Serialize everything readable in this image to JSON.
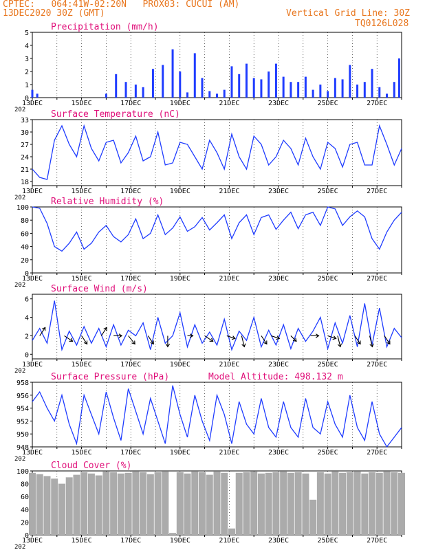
{
  "header": {
    "line1": "CPTEC:   064:41W-02:20N   PROX03: CUCUI (AM)",
    "line2": "13DEC2020 30Z (GMT)",
    "grid_note": "Vertical Grid Line: 30Z",
    "code": "TQ0126L028"
  },
  "colors": {
    "header": "#e8761e",
    "title": "#e0107a",
    "line": "#1f3cff",
    "bar": "#1f3cff",
    "cloud": "#ababab",
    "arrow": "#000000"
  },
  "x_axis": {
    "labels": [
      "13DEC",
      "15DEC",
      "17DEC",
      "19DEC",
      "21DEC",
      "23DEC",
      "25DEC",
      "27DEC"
    ],
    "year_fragment": "202"
  },
  "chart_data": [
    {
      "type": "bar",
      "title": "Precipitation (mm/h)",
      "ylim": [
        0,
        5
      ],
      "yticks": [
        "0",
        "1",
        "2",
        "3",
        "4",
        "5"
      ],
      "x": [
        13.0,
        13.2,
        16.0,
        16.4,
        16.8,
        17.2,
        17.5,
        17.9,
        18.3,
        18.7,
        19.0,
        19.3,
        19.6,
        19.9,
        20.2,
        20.5,
        20.8,
        21.1,
        21.4,
        21.7,
        22.0,
        22.3,
        22.6,
        22.9,
        23.2,
        23.5,
        23.8,
        24.1,
        24.4,
        24.7,
        25.0,
        25.3,
        25.6,
        25.9,
        26.2,
        26.5,
        26.8,
        27.1,
        27.4,
        27.7,
        27.9
      ],
      "values": [
        0.6,
        0.3,
        0.3,
        1.8,
        1.2,
        1.0,
        0.8,
        2.2,
        2.5,
        3.7,
        2.0,
        0.4,
        3.4,
        1.5,
        0.5,
        0.3,
        0.6,
        2.4,
        1.8,
        2.6,
        1.5,
        1.4,
        2.0,
        2.6,
        1.6,
        1.2,
        1.2,
        1.6,
        0.6,
        1.0,
        0.5,
        1.5,
        1.4,
        2.5,
        1.0,
        1.2,
        2.2,
        0.8,
        0.3,
        1.2,
        3.0
      ]
    },
    {
      "type": "line",
      "title": "Surface Temperature (nC)",
      "ylim": [
        17,
        33
      ],
      "yticks": [
        "18",
        "21",
        "24",
        "27",
        "30",
        "33"
      ],
      "x": [
        13.0,
        13.3,
        13.6,
        13.9,
        14.2,
        14.5,
        14.8,
        15.1,
        15.4,
        15.7,
        16.0,
        16.3,
        16.6,
        16.9,
        17.2,
        17.5,
        17.8,
        18.1,
        18.4,
        18.7,
        19.0,
        19.3,
        19.6,
        19.9,
        20.2,
        20.5,
        20.8,
        21.1,
        21.4,
        21.7,
        22.0,
        22.3,
        22.6,
        22.9,
        23.2,
        23.5,
        23.8,
        24.1,
        24.4,
        24.7,
        25.0,
        25.3,
        25.6,
        25.9,
        26.2,
        26.5,
        26.8,
        27.1,
        27.4,
        27.7,
        28.0
      ],
      "values": [
        21.0,
        19.0,
        18.5,
        28.0,
        31.5,
        27.0,
        24.0,
        31.5,
        26.0,
        23.0,
        27.5,
        28.0,
        22.5,
        25.0,
        29.0,
        23.0,
        24.0,
        30.0,
        22.0,
        22.5,
        27.5,
        27.0,
        24.0,
        21.0,
        28.0,
        25.0,
        21.0,
        29.5,
        24.0,
        21.0,
        29.0,
        27.0,
        22.0,
        24.0,
        28.0,
        26.0,
        22.0,
        28.5,
        24.0,
        21.0,
        27.5,
        26.0,
        21.5,
        27.0,
        27.5,
        22.0,
        22.0,
        31.5,
        27.0,
        22.0,
        26.0
      ]
    },
    {
      "type": "line",
      "title": "Relative Humidity (%)",
      "ylim": [
        0,
        100
      ],
      "yticks": [
        "0",
        "20",
        "40",
        "60",
        "80",
        "100"
      ],
      "x": [
        13.0,
        13.3,
        13.6,
        13.9,
        14.2,
        14.5,
        14.8,
        15.1,
        15.4,
        15.7,
        16.0,
        16.3,
        16.6,
        16.9,
        17.2,
        17.5,
        17.8,
        18.1,
        18.4,
        18.7,
        19.0,
        19.3,
        19.6,
        19.9,
        20.2,
        20.5,
        20.8,
        21.1,
        21.4,
        21.7,
        22.0,
        22.3,
        22.6,
        22.9,
        23.2,
        23.5,
        23.8,
        24.1,
        24.4,
        24.7,
        25.0,
        25.3,
        25.6,
        25.9,
        26.2,
        26.5,
        26.8,
        27.1,
        27.4,
        27.7,
        28.0
      ],
      "values": [
        100,
        98,
        75,
        40,
        33,
        45,
        62,
        36,
        45,
        62,
        72,
        55,
        47,
        58,
        82,
        52,
        60,
        88,
        58,
        68,
        85,
        63,
        70,
        84,
        65,
        76,
        88,
        52,
        76,
        88,
        58,
        84,
        88,
        66,
        80,
        92,
        67,
        88,
        92,
        72,
        100,
        97,
        72,
        85,
        94,
        85,
        52,
        36,
        62,
        80,
        92
      ]
    },
    {
      "type": "line",
      "title": "Surface Wind (m/s)",
      "ylim": [
        -0.5,
        6.5
      ],
      "yticks": [
        "0",
        "2",
        "4",
        "6"
      ],
      "x": [
        13.0,
        13.3,
        13.6,
        13.9,
        14.2,
        14.5,
        14.8,
        15.1,
        15.4,
        15.7,
        16.0,
        16.3,
        16.6,
        16.9,
        17.2,
        17.5,
        17.8,
        18.1,
        18.4,
        18.7,
        19.0,
        19.3,
        19.6,
        19.9,
        20.2,
        20.5,
        20.8,
        21.1,
        21.4,
        21.7,
        22.0,
        22.3,
        22.6,
        22.9,
        23.2,
        23.5,
        23.8,
        24.1,
        24.4,
        24.7,
        25.0,
        25.3,
        25.6,
        25.9,
        26.2,
        26.5,
        26.8,
        27.1,
        27.4,
        27.7,
        28.0
      ],
      "values": [
        1.5,
        2.8,
        1.2,
        5.8,
        0.5,
        2.5,
        1.0,
        3.0,
        1.2,
        2.8,
        0.8,
        3.2,
        1.0,
        2.6,
        2.0,
        3.4,
        0.5,
        4.0,
        1.2,
        2.0,
        4.5,
        0.8,
        3.2,
        1.2,
        2.4,
        1.0,
        3.8,
        0.5,
        2.5,
        1.5,
        4.0,
        0.8,
        2.6,
        1.0,
        3.2,
        0.6,
        2.8,
        1.4,
        2.5,
        4.0,
        0.6,
        3.4,
        1.2,
        4.2,
        0.8,
        5.5,
        1.0,
        5.0,
        0.8,
        2.8,
        1.8
      ],
      "vectors": [
        {
          "x": 13.3,
          "u": 1.0,
          "v": 1.5
        },
        {
          "x": 14.3,
          "u": 1.5,
          "v": -1.0
        },
        {
          "x": 15.0,
          "u": 1.0,
          "v": -1.5
        },
        {
          "x": 15.8,
          "u": 1.0,
          "v": 1.5
        },
        {
          "x": 16.3,
          "u": 1.5,
          "v": 0.0
        },
        {
          "x": 16.9,
          "u": 1.2,
          "v": -1.5
        },
        {
          "x": 17.7,
          "u": 1.0,
          "v": -1.5
        },
        {
          "x": 18.5,
          "u": 0.0,
          "v": -2.0
        },
        {
          "x": 19.3,
          "u": 1.0,
          "v": 0.0
        },
        {
          "x": 20.0,
          "u": 1.5,
          "v": -1.0
        },
        {
          "x": 20.9,
          "u": 1.5,
          "v": -0.5
        },
        {
          "x": 21.5,
          "u": 0.5,
          "v": -2.0
        },
        {
          "x": 22.3,
          "u": 1.0,
          "v": -1.5
        },
        {
          "x": 22.7,
          "u": 1.5,
          "v": -0.5
        },
        {
          "x": 23.5,
          "u": 1.0,
          "v": -1.0
        },
        {
          "x": 24.3,
          "u": 1.5,
          "v": 0.0
        },
        {
          "x": 25.0,
          "u": 1.5,
          "v": -0.5
        },
        {
          "x": 25.4,
          "u": 0.5,
          "v": -2.0
        },
        {
          "x": 26.1,
          "u": 1.0,
          "v": -1.5
        },
        {
          "x": 26.7,
          "u": 0.5,
          "v": -2.0
        },
        {
          "x": 27.3,
          "u": 1.0,
          "v": -1.5
        }
      ]
    },
    {
      "type": "line",
      "title": "Surface Pressure (hPa)",
      "subtitle": "Model Altitude: 498.132  m",
      "ylim": [
        948,
        958
      ],
      "yticks": [
        "948",
        "950",
        "952",
        "954",
        "956",
        "958"
      ],
      "x": [
        13.0,
        13.3,
        13.6,
        13.9,
        14.2,
        14.5,
        14.8,
        15.1,
        15.4,
        15.7,
        16.0,
        16.3,
        16.6,
        16.9,
        17.2,
        17.5,
        17.8,
        18.1,
        18.4,
        18.7,
        19.0,
        19.3,
        19.6,
        19.9,
        20.2,
        20.5,
        20.8,
        21.1,
        21.4,
        21.7,
        22.0,
        22.3,
        22.6,
        22.9,
        23.2,
        23.5,
        23.8,
        24.1,
        24.4,
        24.7,
        25.0,
        25.3,
        25.6,
        25.9,
        26.2,
        26.5,
        26.8,
        27.1,
        27.4,
        27.7,
        28.0
      ],
      "values": [
        955.0,
        956.5,
        954.0,
        952.0,
        956.0,
        951.5,
        948.5,
        956.0,
        953.0,
        950.0,
        956.5,
        952.5,
        949.0,
        957.0,
        953.5,
        950.0,
        955.5,
        952.0,
        948.5,
        957.5,
        953.0,
        949.5,
        956.0,
        952.0,
        949.0,
        956.0,
        953.0,
        948.5,
        955.0,
        951.5,
        950.0,
        955.5,
        951.0,
        949.5,
        955.0,
        951.0,
        949.5,
        955.5,
        951.0,
        950.0,
        955.0,
        951.5,
        949.5,
        956.0,
        951.0,
        949.0,
        955.0,
        950.0,
        948.0,
        949.5,
        951.0
      ]
    },
    {
      "type": "bar",
      "title": "Cloud Cover (%)",
      "ylim": [
        0,
        100
      ],
      "yticks": [
        "0",
        "20",
        "40",
        "60",
        "80",
        "100"
      ],
      "x": [
        13.0,
        13.3,
        13.6,
        13.9,
        14.2,
        14.5,
        14.8,
        15.1,
        15.4,
        15.7,
        16.0,
        16.3,
        16.6,
        16.9,
        17.2,
        17.5,
        17.8,
        18.1,
        18.4,
        18.7,
        19.0,
        19.3,
        19.6,
        19.9,
        20.2,
        20.5,
        20.8,
        21.1,
        21.4,
        21.7,
        22.0,
        22.3,
        22.6,
        22.9,
        23.2,
        23.5,
        23.8,
        24.1,
        24.4,
        24.7,
        25.0,
        25.3,
        25.6,
        25.9,
        26.2,
        26.5,
        26.8,
        27.1,
        27.4,
        27.7,
        28.0
      ],
      "values": [
        97,
        95,
        92,
        88,
        80,
        90,
        94,
        98,
        96,
        93,
        99,
        98,
        96,
        97,
        99,
        98,
        95,
        98,
        99,
        3,
        98,
        96,
        99,
        98,
        94,
        99,
        97,
        10,
        97,
        98,
        99,
        96,
        97,
        98,
        99,
        97,
        98,
        96,
        55,
        98,
        96,
        99,
        97,
        98,
        99,
        96,
        98,
        97,
        99,
        98,
        97
      ]
    }
  ]
}
